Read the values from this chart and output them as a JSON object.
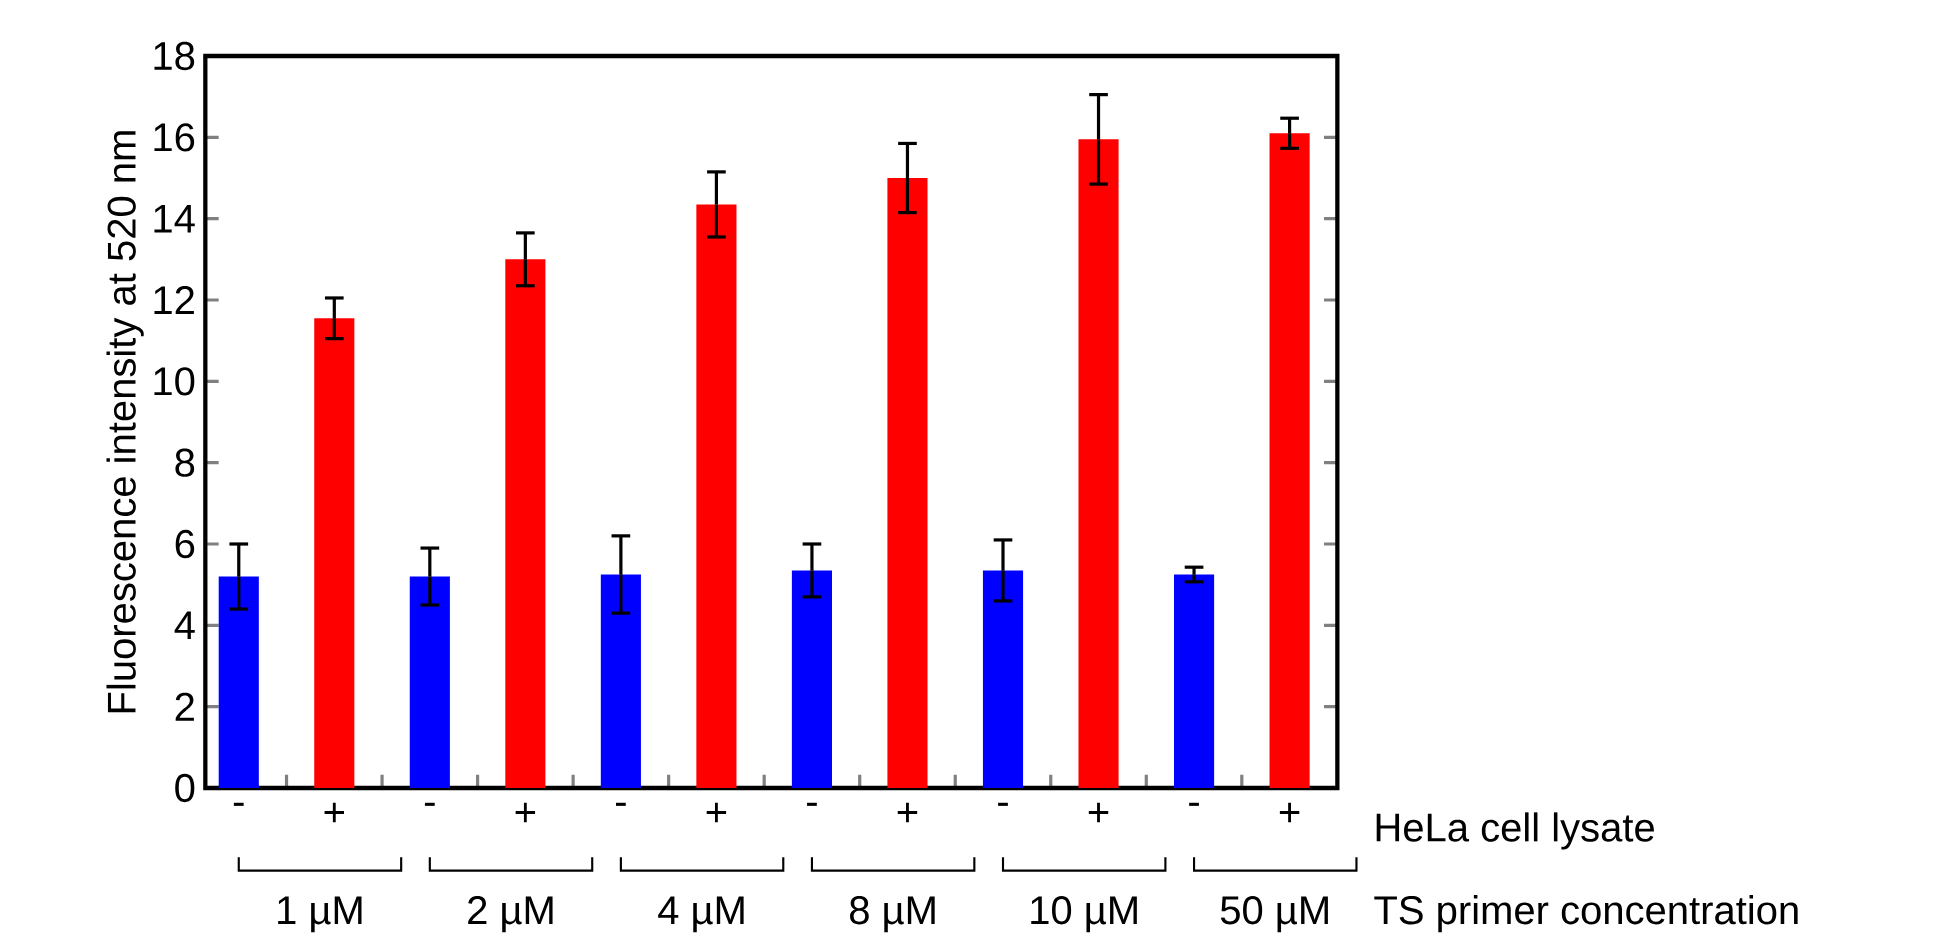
{
  "chart_data": {
    "type": "bar",
    "ylabel": "Fluorescence intensity at 520 nm",
    "categories": [
      "-",
      "+",
      "-",
      "+",
      "-",
      "+",
      "-",
      "+",
      "-",
      "+",
      "-",
      "+"
    ],
    "values": [
      5.2,
      11.55,
      5.2,
      13.0,
      5.25,
      14.35,
      5.35,
      15.0,
      5.35,
      15.95,
      5.25,
      16.1
    ],
    "errors": [
      0.8,
      0.5,
      0.7,
      0.65,
      0.95,
      0.8,
      0.65,
      0.85,
      0.75,
      1.1,
      0.18,
      0.37
    ],
    "colors": [
      "#0000ff",
      "#ff0000",
      "#0000ff",
      "#ff0000",
      "#0000ff",
      "#ff0000",
      "#0000ff",
      "#ff0000",
      "#0000ff",
      "#ff0000",
      "#0000ff",
      "#ff0000"
    ],
    "ylim": [
      0,
      18
    ],
    "yticks": [
      0,
      2,
      4,
      6,
      8,
      10,
      12,
      14,
      16,
      18
    ],
    "annotations": [
      "1 µM",
      "2 µM",
      "4 µM",
      "8 µM",
      "10 µM",
      "50 µM",
      "HeLa cell lysate",
      "TS primer concentration"
    ]
  }
}
